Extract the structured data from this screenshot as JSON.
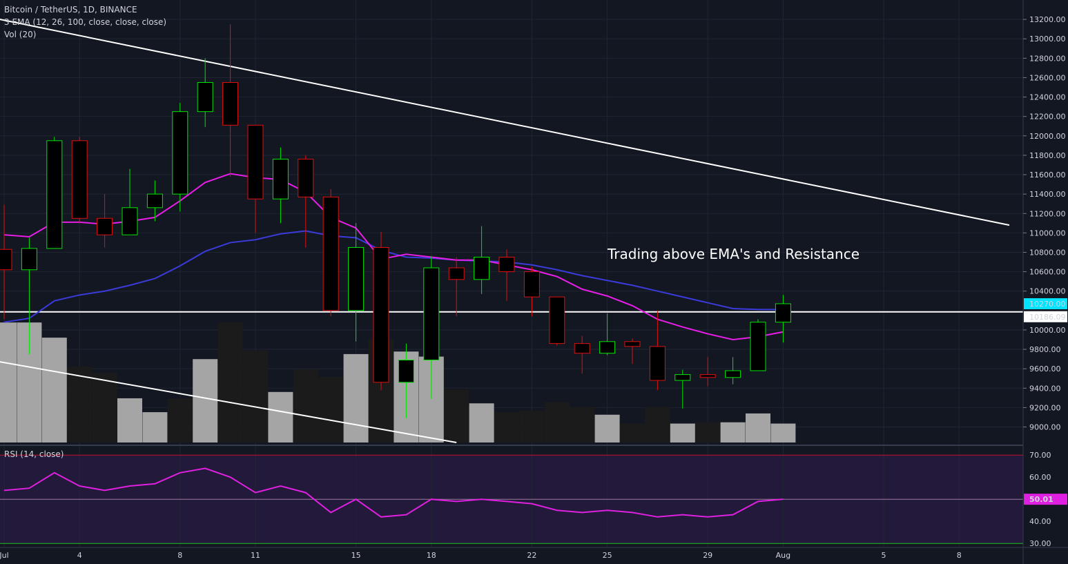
{
  "header": {
    "symbol": "Bitcoin / TetherUS, 1D, BINANCE",
    "ema_study": "3 EMA (12, 26, 100, close, close, close)",
    "vol_study": "Vol (20)",
    "rsi_study": "RSI (14, close)"
  },
  "annotation": "Trading above EMA's and Resistance",
  "colors": {
    "background": "#131722",
    "grid": "#1f2532",
    "bull": "#00e600",
    "bear": "#e01010",
    "body_fill": "#000000",
    "ema_fast": "#e81ee8",
    "ema_slow": "#3b3bdc",
    "trendline": "#ffffff",
    "volume_high": "#a5a5a5",
    "volume_low": "#1b1b1b",
    "rsi_line": "#e020e0",
    "rsi_bg": "#231a3b",
    "last_price_bg": "#00e5ff"
  },
  "price_axis": {
    "ticks": [
      "13200.00",
      "13000.00",
      "12800.00",
      "12600.00",
      "12400.00",
      "12200.00",
      "12000.00",
      "11800.00",
      "11600.00",
      "11400.00",
      "11200.00",
      "11000.00",
      "10800.00",
      "10600.00",
      "10400.00",
      "10000.00",
      "9800.00",
      "9600.00",
      "9400.00",
      "9200.00",
      "9000.00"
    ],
    "last_price_label": "10270.00",
    "level_label": "10186.09"
  },
  "rsi_axis": {
    "ticks": [
      "70.00",
      "60.00",
      "40.00",
      "30.00"
    ],
    "current_label": "50.01"
  },
  "time_axis": {
    "labels": [
      "Jul",
      "4",
      "8",
      "11",
      "15",
      "18",
      "22",
      "25",
      "29",
      "Aug",
      "5",
      "8"
    ]
  },
  "chart_data": {
    "type": "candlestick",
    "title": "Bitcoin / TetherUS, 1D, BINANCE",
    "x": [
      "Jul 1",
      "Jul 2",
      "Jul 3",
      "Jul 4",
      "Jul 5",
      "Jul 6",
      "Jul 7",
      "Jul 8",
      "Jul 9",
      "Jul 10",
      "Jul 11",
      "Jul 12",
      "Jul 13",
      "Jul 14",
      "Jul 15",
      "Jul 16",
      "Jul 17",
      "Jul 18",
      "Jul 19",
      "Jul 20",
      "Jul 21",
      "Jul 22",
      "Jul 23",
      "Jul 24",
      "Jul 25",
      "Jul 26",
      "Jul 27",
      "Jul 28",
      "Jul 29",
      "Jul 30",
      "Jul 31",
      "Aug 1"
    ],
    "candles": [
      {
        "o": 10830,
        "h": 11290,
        "l": 10110,
        "c": 10620
      },
      {
        "o": 10620,
        "h": 10950,
        "l": 9750,
        "c": 10840
      },
      {
        "o": 10840,
        "h": 11990,
        "l": 10840,
        "c": 11950
      },
      {
        "o": 11950,
        "h": 11990,
        "l": 11100,
        "c": 11150
      },
      {
        "o": 11150,
        "h": 11400,
        "l": 10850,
        "c": 10980
      },
      {
        "o": 10980,
        "h": 11660,
        "l": 10980,
        "c": 11260
      },
      {
        "o": 11260,
        "h": 11540,
        "l": 11120,
        "c": 11400
      },
      {
        "o": 11400,
        "h": 12340,
        "l": 11220,
        "c": 12250
      },
      {
        "o": 12250,
        "h": 12800,
        "l": 12090,
        "c": 12550
      },
      {
        "o": 12550,
        "h": 13150,
        "l": 11580,
        "c": 12110
      },
      {
        "o": 12110,
        "h": 12110,
        "l": 11000,
        "c": 11350
      },
      {
        "o": 11350,
        "h": 11880,
        "l": 11100,
        "c": 11760
      },
      {
        "o": 11760,
        "h": 11800,
        "l": 10850,
        "c": 11370
      },
      {
        "o": 11370,
        "h": 11450,
        "l": 10140,
        "c": 10200
      },
      {
        "o": 10200,
        "h": 11100,
        "l": 9880,
        "c": 10850
      },
      {
        "o": 10850,
        "h": 11010,
        "l": 9380,
        "c": 9460
      },
      {
        "o": 9460,
        "h": 9860,
        "l": 9090,
        "c": 9690
      },
      {
        "o": 9690,
        "h": 10760,
        "l": 9290,
        "c": 10640
      },
      {
        "o": 10640,
        "h": 10750,
        "l": 10140,
        "c": 10520
      },
      {
        "o": 10520,
        "h": 11070,
        "l": 10370,
        "c": 10750
      },
      {
        "o": 10750,
        "h": 10830,
        "l": 10300,
        "c": 10600
      },
      {
        "o": 10600,
        "h": 10650,
        "l": 10140,
        "c": 10340
      },
      {
        "o": 10340,
        "h": 10340,
        "l": 9840,
        "c": 9860
      },
      {
        "o": 9860,
        "h": 9940,
        "l": 9550,
        "c": 9760
      },
      {
        "o": 9760,
        "h": 10170,
        "l": 9740,
        "c": 9880
      },
      {
        "o": 9880,
        "h": 9910,
        "l": 9650,
        "c": 9830
      },
      {
        "o": 9830,
        "h": 10200,
        "l": 9380,
        "c": 9480
      },
      {
        "o": 9480,
        "h": 9590,
        "l": 9190,
        "c": 9540
      },
      {
        "o": 9540,
        "h": 9720,
        "l": 9420,
        "c": 9510
      },
      {
        "o": 9510,
        "h": 9720,
        "l": 9440,
        "c": 9580
      },
      {
        "o": 9580,
        "h": 10110,
        "l": 9580,
        "c": 10080
      },
      {
        "o": 10080,
        "h": 10360,
        "l": 9870,
        "c": 10270
      }
    ],
    "ema_fast": [
      10980,
      10960,
      11110,
      11110,
      11090,
      11120,
      11160,
      11330,
      11520,
      11610,
      11570,
      11550,
      11420,
      11160,
      11050,
      10730,
      10780,
      10750,
      10720,
      10720,
      10670,
      10620,
      10550,
      10420,
      10350,
      10250,
      10110,
      10030,
      9960,
      9900,
      9930,
      9980
    ],
    "ema_slow": [
      10080,
      10120,
      10300,
      10360,
      10400,
      10460,
      10530,
      10660,
      10810,
      10900,
      10930,
      10990,
      11020,
      10970,
      10950,
      10820,
      10750,
      10740,
      10720,
      10710,
      10700,
      10670,
      10620,
      10560,
      10510,
      10460,
      10400,
      10340,
      10280,
      10220,
      10210,
      10210
    ],
    "volume": [
      0.95,
      0.95,
      0.83,
      0.6,
      0.55,
      0.35,
      0.24,
      0.35,
      0.66,
      0.95,
      0.73,
      0.4,
      0.58,
      0.52,
      0.7,
      0.82,
      0.72,
      0.68,
      0.42,
      0.31,
      0.24,
      0.25,
      0.32,
      0.28,
      0.22,
      0.15,
      0.28,
      0.15,
      0.16,
      0.16,
      0.23,
      0.15
    ],
    "volume_highlight": [
      true,
      true,
      true,
      false,
      false,
      true,
      true,
      false,
      true,
      false,
      false,
      true,
      false,
      false,
      true,
      false,
      true,
      true,
      false,
      true,
      false,
      false,
      false,
      false,
      true,
      false,
      false,
      true,
      false,
      true,
      true,
      true
    ],
    "rsi": [
      54,
      55,
      62,
      56,
      54,
      56,
      57,
      62,
      64,
      60,
      53,
      56,
      53,
      44,
      50,
      42,
      43,
      50,
      49,
      50,
      49,
      48,
      45,
      44,
      45,
      44,
      42,
      43,
      42,
      43,
      49,
      50.01
    ],
    "rsi_levels": [
      70,
      50,
      30
    ],
    "ylim_price": [
      8840,
      13400
    ],
    "ylim_rsi": [
      28.5,
      73.5
    ],
    "resistance_level": 10186.09,
    "trendlines": [
      {
        "from": {
          "x": "Jun 28",
          "y": 13350
        },
        "to": {
          "x": "Aug 10",
          "y": 11080
        }
      },
      {
        "from": {
          "x": "Jun 30",
          "y": 9710
        },
        "to": {
          "x": "Jul 19",
          "y": 8840
        }
      }
    ]
  }
}
